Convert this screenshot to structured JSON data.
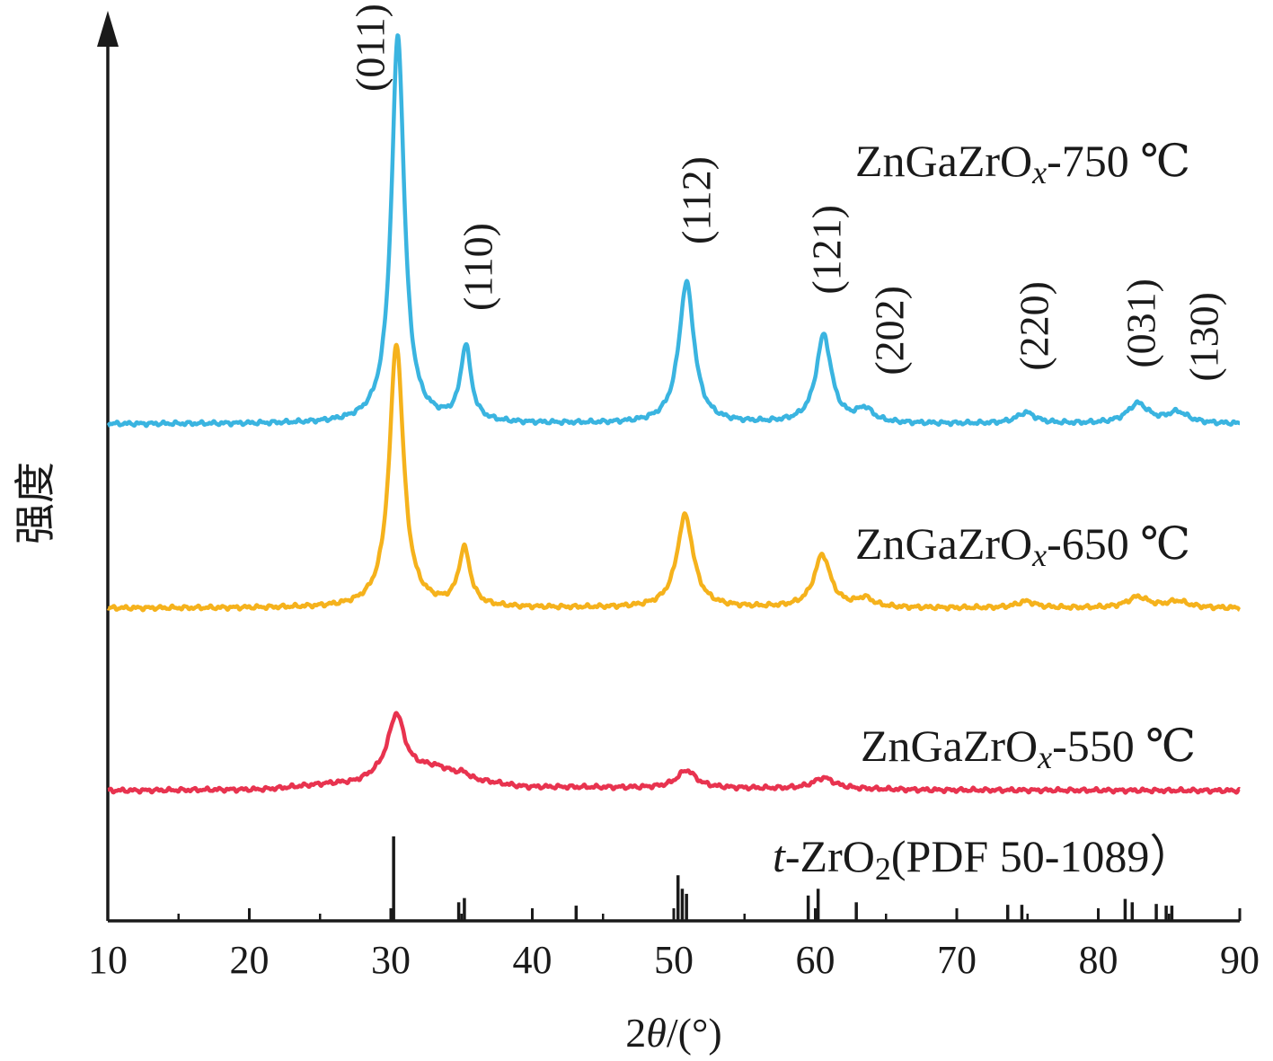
{
  "chart_data": {
    "type": "line",
    "xlabel": "2θ/(°)",
    "xlabel_parts": [
      "2",
      "θ",
      "/(°)"
    ],
    "ylabel": "强度",
    "xlim": [
      10,
      90
    ],
    "x_ticks": [
      10,
      20,
      30,
      40,
      50,
      60,
      70,
      80,
      90
    ],
    "grid": false,
    "series": [
      {
        "name": "ZnGaZrOx-750 ℃",
        "label_parts": [
          "ZnGaZrO",
          "x",
          "-750 ℃"
        ],
        "color": "#3ab4e0",
        "baseline": 0.0,
        "background": [
          [
            10,
            0.0
          ],
          [
            90,
            0.0
          ]
        ],
        "peaks": [
          {
            "x": 30.5,
            "height": 88,
            "width": 0.55
          },
          {
            "x": 35.3,
            "height": 17,
            "width": 0.45
          },
          {
            "x": 50.9,
            "height": 32,
            "width": 0.65
          },
          {
            "x": 60.6,
            "height": 20,
            "width": 0.65
          },
          {
            "x": 63.5,
            "height": 3,
            "width": 0.7
          },
          {
            "x": 74.9,
            "height": 2.5,
            "width": 0.8
          },
          {
            "x": 82.8,
            "height": 4.5,
            "width": 0.9
          },
          {
            "x": 85.6,
            "height": 2.5,
            "width": 0.9
          }
        ]
      },
      {
        "name": "ZnGaZrOx-650 ℃",
        "label_parts": [
          "ZnGaZrO",
          "x",
          "-650 ℃"
        ],
        "color": "#f5b21c",
        "baseline": 0.0,
        "background": [
          [
            10,
            0.0
          ],
          [
            30,
            0.0
          ],
          [
            90,
            0.0
          ]
        ],
        "peaks": [
          {
            "x": 30.4,
            "height": 60,
            "width": 0.6
          },
          {
            "x": 35.2,
            "height": 13,
            "width": 0.5
          },
          {
            "x": 50.8,
            "height": 21,
            "width": 0.7
          },
          {
            "x": 60.5,
            "height": 12,
            "width": 0.7
          },
          {
            "x": 63.5,
            "height": 2,
            "width": 0.7
          },
          {
            "x": 74.9,
            "height": 1.5,
            "width": 0.8
          },
          {
            "x": 82.8,
            "height": 2.5,
            "width": 0.9
          },
          {
            "x": 85.6,
            "height": 1.5,
            "width": 0.9
          }
        ]
      },
      {
        "name": "ZnGaZrOx-550 ℃",
        "label_parts": [
          "ZnGaZrO",
          "x",
          "-550 ℃"
        ],
        "color": "#e8334f",
        "baseline": 0.0,
        "background": [
          [
            10,
            0.0
          ],
          [
            20,
            0.2
          ],
          [
            27,
            1.6
          ],
          [
            30,
            3.5
          ],
          [
            33,
            5
          ],
          [
            36,
            2
          ],
          [
            40,
            0.8
          ],
          [
            50,
            0.6
          ],
          [
            60,
            0.4
          ],
          [
            70,
            0.1
          ],
          [
            90,
            0.0
          ]
        ],
        "peaks": [
          {
            "x": 30.4,
            "height": 14,
            "width": 0.7
          },
          {
            "x": 35.2,
            "height": 1.5,
            "width": 0.6
          },
          {
            "x": 50.9,
            "height": 4,
            "width": 0.8
          },
          {
            "x": 60.6,
            "height": 2.5,
            "width": 0.9
          }
        ]
      }
    ],
    "reference": {
      "name": "t-ZrO2(PDF 50-1089）",
      "label_parts": [
        "t",
        "-ZrO",
        "2",
        "(PDF 50-1089）"
      ],
      "color": "#1a1a1a",
      "lines": [
        {
          "x": 30.2,
          "intensity": 100
        },
        {
          "x": 34.8,
          "intensity": 22
        },
        {
          "x": 35.2,
          "intensity": 27
        },
        {
          "x": 43.1,
          "intensity": 18
        },
        {
          "x": 50.3,
          "intensity": 54
        },
        {
          "x": 50.6,
          "intensity": 38
        },
        {
          "x": 50.9,
          "intensity": 32
        },
        {
          "x": 59.5,
          "intensity": 30
        },
        {
          "x": 60.2,
          "intensity": 38
        },
        {
          "x": 62.9,
          "intensity": 22
        },
        {
          "x": 73.6,
          "intensity": 19
        },
        {
          "x": 74.6,
          "intensity": 19
        },
        {
          "x": 81.9,
          "intensity": 26
        },
        {
          "x": 82.4,
          "intensity": 22
        },
        {
          "x": 84.1,
          "intensity": 20
        },
        {
          "x": 84.8,
          "intensity": 18
        },
        {
          "x": 85.2,
          "intensity": 18
        }
      ]
    },
    "annotations": [
      {
        "text": "(011)",
        "x": 30.5
      },
      {
        "text": "(110)",
        "x": 35.3
      },
      {
        "text": "(112)",
        "x": 50.9
      },
      {
        "text": "(121)",
        "x": 60.6
      },
      {
        "text": "(202)",
        "x": 63.5
      },
      {
        "text": "(220)",
        "x": 74.9
      },
      {
        "text": "(031)",
        "x": 82.8
      },
      {
        "text": "(130)",
        "x": 85.6
      }
    ]
  }
}
